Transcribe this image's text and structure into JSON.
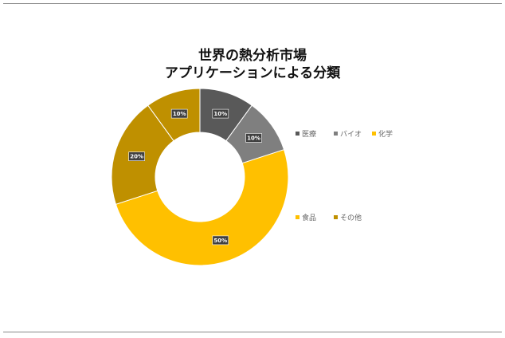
{
  "chart_data": {
    "type": "pie",
    "donut": true,
    "title_lines": [
      "世界の熱分析市場",
      "アプリケーションによる分類"
    ],
    "categories": [
      "医療",
      "バイオ",
      "化学",
      "食品",
      "その他"
    ],
    "values": [
      10,
      10,
      50,
      20,
      10
    ],
    "data_labels": [
      "10%",
      "10%",
      "50%",
      "20%",
      "10%"
    ],
    "colors": [
      "#595959",
      "#7f7f7f",
      "#ffc000",
      "#bf9000",
      "#bf9000"
    ],
    "legend_colors": [
      "#595959",
      "#7f7f7f",
      "#ffc000",
      "#ffc000",
      "#bf9000"
    ],
    "label_box_colors": [
      "#404040",
      "#404040",
      "#404040",
      "#404040",
      "#404040"
    ],
    "legend_position": "right"
  }
}
